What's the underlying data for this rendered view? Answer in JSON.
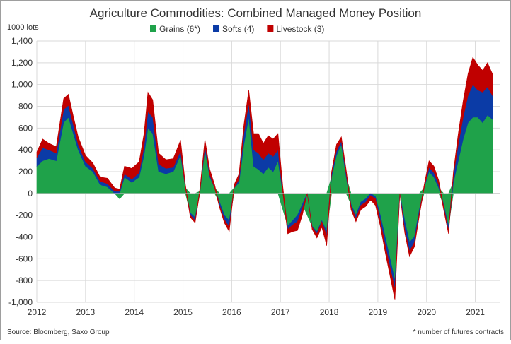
{
  "chart_data": {
    "type": "area",
    "stacked": true,
    "title": "Agriculture Commodities: Combined Managed Money Position",
    "ylabel": "1000 lots",
    "xlabel": "",
    "ylim": [
      -1000,
      1400
    ],
    "yticks": [
      -1000,
      -800,
      -600,
      -400,
      -200,
      0,
      200,
      400,
      600,
      800,
      1000,
      1200,
      1400
    ],
    "ytick_labels": [
      "-1,000",
      "-800",
      "-600",
      "-400",
      "-200",
      "0",
      "200",
      "400",
      "600",
      "800",
      "1,000",
      "1,200",
      "1,400"
    ],
    "xlim": [
      2012.0,
      2021.5
    ],
    "xticks": [
      2012,
      2013,
      2014,
      2015,
      2016,
      2017,
      2018,
      2019,
      2020,
      2021
    ],
    "xtick_labels": [
      "2012",
      "2013",
      "2014",
      "2015",
      "2016",
      "2017",
      "2018",
      "2019",
      "2020",
      "2021"
    ],
    "grid": true,
    "legend_position": "top-center",
    "x": [
      2012.0,
      2012.12,
      2012.25,
      2012.4,
      2012.55,
      2012.65,
      2012.75,
      2012.85,
      2013.0,
      2013.15,
      2013.3,
      2013.45,
      2013.6,
      2013.7,
      2013.8,
      2013.95,
      2014.1,
      2014.2,
      2014.28,
      2014.38,
      2014.5,
      2014.65,
      2014.8,
      2014.95,
      2015.05,
      2015.15,
      2015.25,
      2015.35,
      2015.45,
      2015.55,
      2015.65,
      2015.75,
      2015.85,
      2015.95,
      2016.05,
      2016.15,
      2016.25,
      2016.35,
      2016.45,
      2016.55,
      2016.65,
      2016.75,
      2016.85,
      2016.95,
      2017.05,
      2017.15,
      2017.25,
      2017.35,
      2017.45,
      2017.55,
      2017.65,
      2017.75,
      2017.85,
      2017.95,
      2018.05,
      2018.15,
      2018.25,
      2018.35,
      2018.45,
      2018.55,
      2018.65,
      2018.75,
      2018.85,
      2018.95,
      2019.05,
      2019.15,
      2019.25,
      2019.35,
      2019.45,
      2019.55,
      2019.65,
      2019.75,
      2019.85,
      2019.95,
      2020.05,
      2020.15,
      2020.25,
      2020.35,
      2020.45,
      2020.55,
      2020.65,
      2020.75,
      2020.85,
      2020.95,
      2021.05,
      2021.15,
      2021.25,
      2021.35
    ],
    "series": [
      {
        "name": "Grains (6*)",
        "color": "#1fa24a",
        "values": [
          250,
          300,
          320,
          300,
          650,
          700,
          550,
          400,
          250,
          200,
          80,
          60,
          0,
          -50,
          150,
          100,
          150,
          350,
          600,
          550,
          200,
          180,
          200,
          350,
          50,
          -180,
          -220,
          20,
          400,
          150,
          50,
          -80,
          -200,
          -250,
          50,
          100,
          450,
          700,
          250,
          220,
          180,
          240,
          200,
          300,
          -150,
          -300,
          -250,
          -200,
          -100,
          -200,
          -300,
          -350,
          -250,
          -350,
          150,
          350,
          450,
          150,
          -100,
          -200,
          -80,
          -50,
          0,
          -30,
          -200,
          -400,
          -600,
          -800,
          0,
          -250,
          -450,
          -400,
          -150,
          50,
          200,
          150,
          50,
          -100,
          -300,
          100,
          300,
          500,
          650,
          700,
          700,
          650,
          720,
          680
        ]
      },
      {
        "name": "Softs (4)",
        "color": "#0b3ba6",
        "values": [
          80,
          120,
          80,
          70,
          120,
          110,
          80,
          50,
          40,
          30,
          30,
          30,
          20,
          20,
          30,
          30,
          40,
          80,
          150,
          150,
          70,
          50,
          40,
          40,
          0,
          -20,
          -30,
          0,
          40,
          20,
          0,
          -30,
          -40,
          -60,
          0,
          30,
          100,
          130,
          150,
          150,
          130,
          130,
          140,
          100,
          0,
          -30,
          -40,
          -60,
          -40,
          0,
          -10,
          -20,
          -10,
          -40,
          30,
          40,
          30,
          30,
          -20,
          -30,
          -30,
          -30,
          -20,
          -20,
          -50,
          -70,
          -80,
          -80,
          0,
          -80,
          -80,
          -50,
          -30,
          0,
          40,
          40,
          30,
          -20,
          -40,
          60,
          150,
          200,
          250,
          300,
          250,
          280,
          260,
          220
        ]
      },
      {
        "name": "Livestock (3)",
        "color": "#c00000",
        "values": [
          50,
          80,
          60,
          60,
          100,
          100,
          80,
          70,
          60,
          50,
          40,
          50,
          30,
          20,
          70,
          100,
          100,
          120,
          180,
          160,
          100,
          80,
          80,
          100,
          30,
          -20,
          -20,
          30,
          60,
          50,
          30,
          -20,
          -30,
          -40,
          30,
          50,
          80,
          120,
          150,
          180,
          150,
          160,
          160,
          150,
          60,
          -40,
          -60,
          -80,
          -60,
          0,
          -20,
          -40,
          -50,
          -90,
          20,
          60,
          40,
          40,
          -30,
          -30,
          -40,
          -40,
          -40,
          -60,
          -50,
          -70,
          -80,
          -100,
          0,
          -30,
          -50,
          -40,
          -30,
          30,
          60,
          60,
          40,
          -30,
          -30,
          40,
          100,
          150,
          200,
          250,
          230,
          200,
          220,
          200
        ]
      }
    ],
    "source_note": "Source: Bloomberg, Saxo Group",
    "footnote": "* number of futures contracts"
  }
}
